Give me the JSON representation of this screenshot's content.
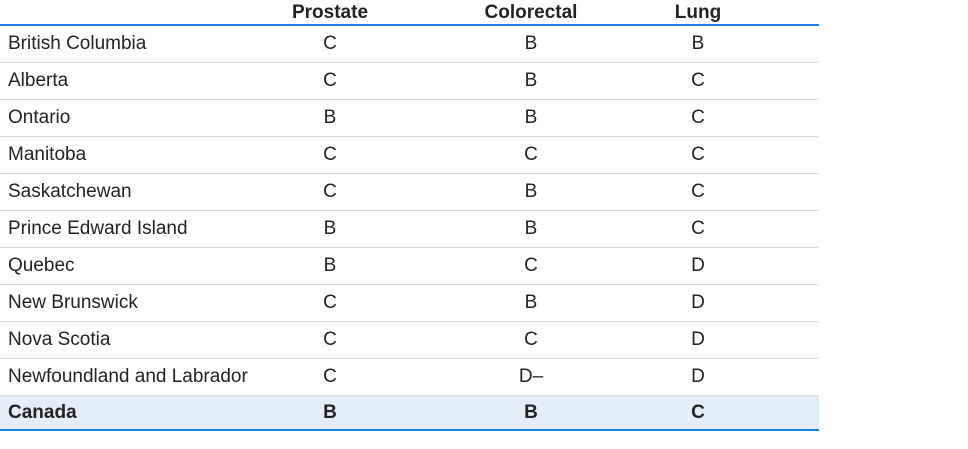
{
  "colors": {
    "accent_blue": "#1a7ce1",
    "divider_gray": "#d9d9d9",
    "highlight_row_bg": "#e4eef9",
    "text": "#232323",
    "page_background": "#ffffff"
  },
  "chart_data": {
    "type": "table",
    "title": "",
    "columns": [
      "",
      "Prostate",
      "Colorectal",
      "Lung"
    ],
    "rows": [
      [
        "British Columbia",
        "C",
        "B",
        "B"
      ],
      [
        "Alberta",
        "C",
        "B",
        "C"
      ],
      [
        "Ontario",
        "B",
        "B",
        "C"
      ],
      [
        "Manitoba",
        "C",
        "C",
        "C"
      ],
      [
        "Saskatchewan",
        "C",
        "B",
        "C"
      ],
      [
        "Prince Edward Island",
        "B",
        "B",
        "C"
      ],
      [
        "Quebec",
        "B",
        "C",
        "D"
      ],
      [
        "New Brunswick",
        "C",
        "B",
        "D"
      ],
      [
        "Nova Scotia",
        "C",
        "C",
        "D"
      ],
      [
        "Newfoundland and Labrador",
        "C",
        "D–",
        "D"
      ],
      [
        "Canada",
        "B",
        "B",
        "C"
      ]
    ],
    "highlight_row": "Canada",
    "layout_hints": {
      "header_rule_color": "accent_blue",
      "bottom_rule_color": "accent_blue",
      "row_divider_color": "divider_gray",
      "grade_columns_aligned": "center",
      "region_column_aligned": "left"
    }
  }
}
